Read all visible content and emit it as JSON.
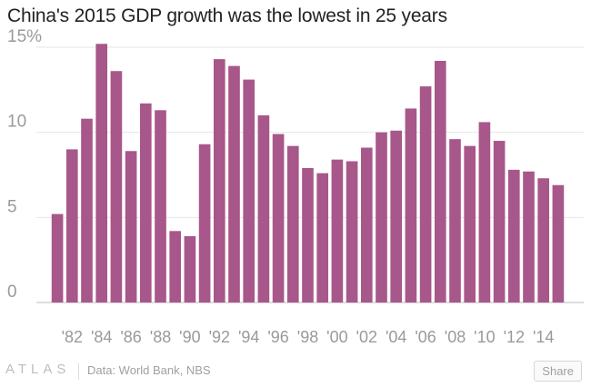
{
  "title": "China's 2015 GDP growth was the lowest in 25 years",
  "footer": {
    "logo": "ATLAS",
    "source": "Data: World Bank, NBS",
    "share_label": "Share"
  },
  "colors": {
    "bar": "#a8578a",
    "grid": "#e6e6e6",
    "axis_text": "#9a9a9a"
  },
  "chart_data": {
    "type": "bar",
    "title": "China's 2015 GDP growth was the lowest in 25 years",
    "xlabel": "",
    "ylabel": "",
    "ylim": [
      0,
      15
    ],
    "grid": true,
    "y_ticks": [
      0,
      5,
      10,
      15
    ],
    "y_tick_labels": [
      "0",
      "5",
      "10",
      "15%"
    ],
    "x_tick_labels": [
      "'82",
      "'84",
      "'86",
      "'88",
      "'90",
      "'92",
      "'94",
      "'96",
      "'98",
      "'00",
      "'02",
      "'04",
      "'06",
      "'08",
      "'10",
      "'12",
      "'14"
    ],
    "categories": [
      1981,
      1982,
      1983,
      1984,
      1985,
      1986,
      1987,
      1988,
      1989,
      1990,
      1991,
      1992,
      1993,
      1994,
      1995,
      1996,
      1997,
      1998,
      1999,
      2000,
      2001,
      2002,
      2003,
      2004,
      2005,
      2006,
      2007,
      2008,
      2009,
      2010,
      2011,
      2012,
      2013,
      2014,
      2015
    ],
    "values": [
      5.2,
      9.0,
      10.8,
      15.2,
      13.6,
      8.9,
      11.7,
      11.3,
      4.2,
      3.9,
      9.3,
      14.3,
      13.9,
      13.1,
      11.0,
      9.9,
      9.2,
      7.9,
      7.6,
      8.4,
      8.3,
      9.1,
      10.0,
      10.1,
      11.4,
      12.7,
      14.2,
      9.6,
      9.2,
      10.6,
      9.5,
      7.8,
      7.7,
      7.3,
      6.9
    ]
  }
}
